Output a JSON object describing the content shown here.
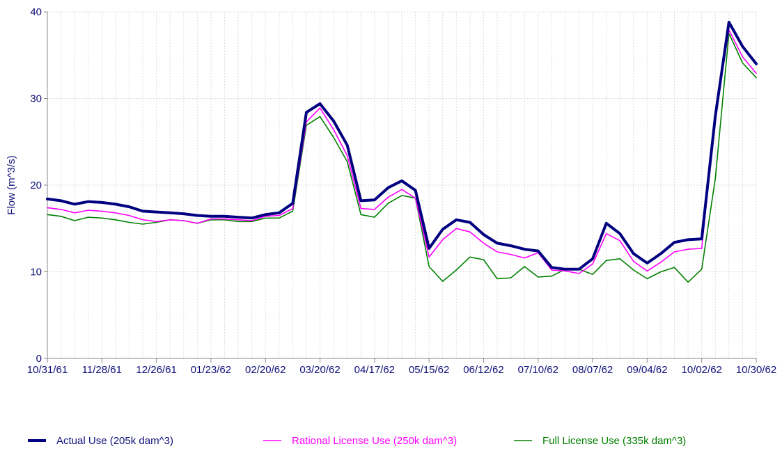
{
  "chart_data": {
    "type": "line",
    "title": "",
    "xlabel": "",
    "ylabel": "Flow (m^3/s)",
    "ylim": [
      0,
      40
    ],
    "yticks": [
      0,
      10,
      20,
      30,
      40
    ],
    "xlim": [
      "1961-10-31",
      "1962-10-30"
    ],
    "xticks": [
      {
        "date": "1961-10-31",
        "label": "10/31/61"
      },
      {
        "date": "1961-11-28",
        "label": "11/28/61"
      },
      {
        "date": "1961-12-26",
        "label": "12/26/61"
      },
      {
        "date": "1962-01-23",
        "label": "01/23/62"
      },
      {
        "date": "1962-02-20",
        "label": "02/20/62"
      },
      {
        "date": "1962-03-20",
        "label": "03/20/62"
      },
      {
        "date": "1962-04-17",
        "label": "04/17/62"
      },
      {
        "date": "1962-05-15",
        "label": "05/15/62"
      },
      {
        "date": "1962-06-12",
        "label": "06/12/62"
      },
      {
        "date": "1962-07-10",
        "label": "07/10/62"
      },
      {
        "date": "1962-08-07",
        "label": "08/07/62"
      },
      {
        "date": "1962-09-04",
        "label": "09/04/62"
      },
      {
        "date": "1962-10-02",
        "label": "10/02/62"
      },
      {
        "date": "1962-10-30",
        "label": "10/30/62"
      }
    ],
    "grid": true,
    "legend_position": "bottom",
    "x": [
      "1961-10-31",
      "1961-11-07",
      "1961-11-14",
      "1961-11-21",
      "1961-11-28",
      "1961-12-05",
      "1961-12-12",
      "1961-12-19",
      "1961-12-26",
      "1962-01-02",
      "1962-01-09",
      "1962-01-16",
      "1962-01-23",
      "1962-01-30",
      "1962-02-06",
      "1962-02-13",
      "1962-02-20",
      "1962-02-27",
      "1962-03-06",
      "1962-03-13",
      "1962-03-20",
      "1962-03-27",
      "1962-04-03",
      "1962-04-10",
      "1962-04-17",
      "1962-04-24",
      "1962-05-01",
      "1962-05-08",
      "1962-05-15",
      "1962-05-22",
      "1962-05-29",
      "1962-06-05",
      "1962-06-12",
      "1962-06-19",
      "1962-06-26",
      "1962-07-03",
      "1962-07-10",
      "1962-07-17",
      "1962-07-24",
      "1962-07-31",
      "1962-08-07",
      "1962-08-14",
      "1962-08-21",
      "1962-08-28",
      "1962-09-04",
      "1962-09-11",
      "1962-09-18",
      "1962-09-25",
      "1962-10-02",
      "1962-10-09",
      "1962-10-16",
      "1962-10-23",
      "1962-10-30"
    ],
    "series": [
      {
        "name": "Actual Use (205k dam^3)",
        "color": "#000080",
        "values": [
          18.4,
          18.2,
          17.8,
          18.1,
          18.0,
          17.8,
          17.5,
          17.0,
          16.9,
          16.8,
          16.7,
          16.5,
          16.4,
          16.4,
          16.3,
          16.2,
          16.6,
          16.8,
          17.9,
          28.4,
          29.4,
          27.4,
          24.6,
          18.2,
          18.3,
          19.7,
          20.5,
          19.4,
          12.7,
          14.9,
          16.0,
          15.7,
          14.3,
          13.3,
          13.0,
          12.6,
          12.4,
          10.5,
          10.3,
          10.3,
          11.5,
          15.6,
          14.4,
          12.1,
          11.0,
          12.1,
          13.4,
          13.7,
          13.8,
          28.0,
          38.8,
          36.0,
          34.0
        ]
      },
      {
        "name": "Rational License Use (250k dam^3)",
        "color": "#ff00ff",
        "values": [
          17.4,
          17.2,
          16.8,
          17.1,
          17.0,
          16.8,
          16.5,
          16.0,
          15.8,
          16.0,
          15.9,
          15.6,
          16.1,
          16.1,
          16.0,
          15.9,
          16.4,
          16.5,
          17.3,
          27.3,
          28.9,
          26.4,
          23.4,
          17.3,
          17.2,
          18.6,
          19.5,
          18.5,
          11.7,
          13.7,
          15.0,
          14.6,
          13.3,
          12.3,
          12.0,
          11.6,
          12.2,
          10.2,
          10.1,
          9.8,
          10.9,
          14.4,
          13.6,
          11.2,
          10.1,
          11.1,
          12.3,
          12.6,
          12.7,
          28.0,
          37.9,
          34.8,
          32.9
        ]
      },
      {
        "name": "Full License Use (335k dam^3)",
        "color": "#008000",
        "values": [
          16.6,
          16.4,
          15.9,
          16.3,
          16.2,
          16.0,
          15.7,
          15.5,
          15.7,
          16.0,
          15.9,
          15.6,
          16.0,
          16.0,
          15.8,
          15.8,
          16.2,
          16.2,
          17.0,
          26.9,
          27.9,
          25.5,
          22.7,
          16.6,
          16.3,
          17.9,
          18.8,
          18.5,
          10.6,
          8.9,
          10.2,
          11.7,
          11.4,
          9.2,
          9.3,
          10.6,
          9.4,
          9.5,
          10.3,
          10.3,
          9.7,
          11.3,
          11.5,
          10.2,
          9.2,
          10.0,
          10.5,
          8.8,
          10.3,
          20.8,
          37.5,
          34.1,
          32.4
        ]
      }
    ]
  }
}
